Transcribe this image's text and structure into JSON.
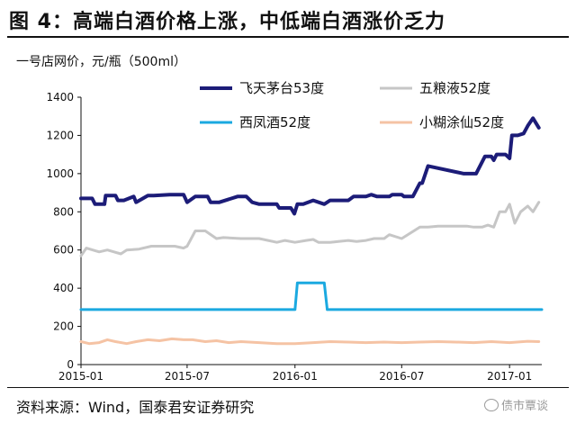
{
  "header": {
    "title": "图 4：高端白酒价格上涨，中低端白酒涨价乏力"
  },
  "unit_label": "一号店网价，元/瓶（500ml）",
  "source": "资料来源：Wind，国泰君安证券研究",
  "watermark": "债市覃谈",
  "chart_data": {
    "type": "line",
    "title": "高端白酒价格上涨，中低端白酒涨价乏力",
    "ylabel": "一号店网价，元/瓶（500ml）",
    "ylim": [
      0,
      1400
    ],
    "yticks": [
      0,
      200,
      400,
      600,
      800,
      1000,
      1200,
      1400
    ],
    "xlim": [
      "2015-01-01",
      "2017-02-25"
    ],
    "xticks": [
      "2015-01",
      "2015-07",
      "2016-01",
      "2016-07",
      "2017-01"
    ],
    "grid": false,
    "legend_position": "top-right",
    "series": [
      {
        "name": "飞天茅台53度",
        "color": "#1c1c78",
        "x": [
          "2015-01-01",
          "2015-01-20",
          "2015-01-25",
          "2015-02-10",
          "2015-02-12",
          "2015-03-01",
          "2015-03-05",
          "2015-03-15",
          "2015-04-01",
          "2015-04-05",
          "2015-04-25",
          "2015-05-05",
          "2015-06-01",
          "2015-06-25",
          "2015-07-01",
          "2015-07-15",
          "2015-08-01",
          "2015-08-05",
          "2015-08-10",
          "2015-08-25",
          "2015-09-25",
          "2015-10-10",
          "2015-10-20",
          "2015-11-01",
          "2015-11-20",
          "2015-12-01",
          "2015-12-05",
          "2015-12-25",
          "2015-12-31",
          "2016-01-05",
          "2016-01-15",
          "2016-02-01",
          "2016-02-20",
          "2016-03-01",
          "2016-03-10",
          "2016-04-01",
          "2016-04-10",
          "2016-05-01",
          "2016-05-10",
          "2016-05-20",
          "2016-06-10",
          "2016-06-15",
          "2016-07-01",
          "2016-07-05",
          "2016-07-20",
          "2016-08-01",
          "2016-08-05",
          "2016-08-15",
          "2016-10-15",
          "2016-10-20",
          "2016-11-01",
          "2016-11-05",
          "2016-11-20",
          "2016-12-01",
          "2016-12-05",
          "2016-12-10",
          "2016-12-20",
          "2016-12-25",
          "2017-01-01",
          "2017-01-05",
          "2017-01-15",
          "2017-01-25",
          "2017-02-01",
          "2017-02-10",
          "2017-02-20"
        ],
        "values": [
          870,
          870,
          840,
          840,
          885,
          885,
          860,
          860,
          880,
          850,
          885,
          885,
          890,
          890,
          850,
          880,
          880,
          880,
          850,
          850,
          880,
          880,
          850,
          840,
          840,
          840,
          820,
          820,
          790,
          840,
          840,
          860,
          840,
          860,
          860,
          860,
          880,
          880,
          890,
          880,
          880,
          890,
          890,
          880,
          880,
          950,
          950,
          1040,
          1000,
          1000,
          1000,
          1000,
          1090,
          1090,
          1070,
          1100,
          1100,
          1100,
          1080,
          1200,
          1200,
          1210,
          1250,
          1290,
          1240
        ]
      },
      {
        "name": "五粮液52度",
        "color": "#c6c6c6",
        "x": [
          "2015-01-01",
          "2015-01-10",
          "2015-02-01",
          "2015-02-15",
          "2015-03-10",
          "2015-03-20",
          "2015-04-10",
          "2015-05-01",
          "2015-06-10",
          "2015-06-25",
          "2015-07-01",
          "2015-07-15",
          "2015-08-01",
          "2015-08-20",
          "2015-09-01",
          "2015-10-01",
          "2015-11-01",
          "2015-12-01",
          "2015-12-15",
          "2016-01-01",
          "2016-01-20",
          "2016-02-01",
          "2016-02-10",
          "2016-03-01",
          "2016-03-15",
          "2016-04-01",
          "2016-04-15",
          "2016-05-01",
          "2016-05-15",
          "2016-06-01",
          "2016-06-10",
          "2016-07-01",
          "2016-08-01",
          "2016-08-15",
          "2016-09-01",
          "2016-10-01",
          "2016-10-20",
          "2016-11-01",
          "2016-11-15",
          "2016-11-25",
          "2016-12-05",
          "2016-12-15",
          "2016-12-25",
          "2017-01-01",
          "2017-01-10",
          "2017-01-20",
          "2017-02-01",
          "2017-02-10",
          "2017-02-20"
        ],
        "values": [
          570,
          610,
          590,
          600,
          580,
          600,
          605,
          620,
          620,
          610,
          620,
          700,
          700,
          660,
          665,
          660,
          660,
          640,
          650,
          640,
          650,
          655,
          640,
          640,
          645,
          650,
          645,
          650,
          660,
          660,
          680,
          660,
          720,
          720,
          725,
          725,
          725,
          720,
          720,
          730,
          720,
          800,
          800,
          840,
          740,
          800,
          830,
          800,
          850
        ]
      },
      {
        "name": "西凤酒52度",
        "color": "#1ba9e0",
        "x": [
          "2015-01-01",
          "2016-01-01",
          "2016-01-05",
          "2016-02-20",
          "2016-02-25",
          "2017-02-25"
        ],
        "values": [
          288,
          288,
          428,
          428,
          288,
          288
        ]
      },
      {
        "name": "小糊涂仙52度",
        "color": "#f5c3a4",
        "x": [
          "2015-01-01",
          "2015-01-15",
          "2015-02-01",
          "2015-02-15",
          "2015-03-01",
          "2015-03-20",
          "2015-04-05",
          "2015-04-25",
          "2015-05-15",
          "2015-06-05",
          "2015-06-25",
          "2015-07-10",
          "2015-08-01",
          "2015-08-20",
          "2015-09-10",
          "2015-10-01",
          "2015-11-01",
          "2015-12-01",
          "2016-01-01",
          "2016-02-01",
          "2016-03-01",
          "2016-04-01",
          "2016-05-01",
          "2016-06-01",
          "2016-07-01",
          "2016-08-01",
          "2016-09-01",
          "2016-10-01",
          "2016-11-01",
          "2016-12-01",
          "2017-01-01",
          "2017-02-01",
          "2017-02-20"
        ],
        "values": [
          120,
          110,
          115,
          130,
          120,
          110,
          120,
          130,
          125,
          135,
          130,
          130,
          120,
          125,
          115,
          120,
          115,
          110,
          110,
          115,
          120,
          118,
          115,
          118,
          115,
          118,
          120,
          118,
          115,
          120,
          115,
          122,
          120
        ]
      }
    ]
  }
}
